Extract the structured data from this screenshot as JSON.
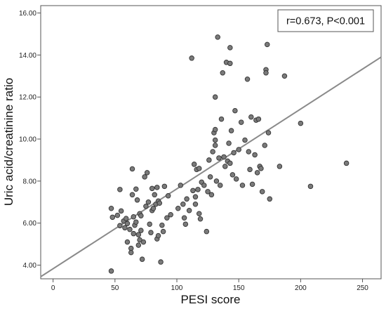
{
  "chart_data": {
    "type": "scatter",
    "title": "",
    "xlabel": "PESI score",
    "ylabel": "Uric acid/creatinine ratio",
    "xlim": [
      -10,
      265
    ],
    "ylim": [
      3.35,
      16.35
    ],
    "x_ticks": [
      0,
      50,
      100,
      150,
      200,
      250
    ],
    "x_tick_labels": [
      "0",
      "50",
      "100",
      "150",
      "200",
      "250"
    ],
    "y_ticks": [
      4,
      6,
      8,
      10,
      12,
      14,
      16
    ],
    "y_tick_labels": [
      "4.00",
      "6.00",
      "8.00",
      "10.00",
      "12.00",
      "14.00",
      "16.00"
    ],
    "grid": false,
    "annotation": "r=0.673, P<0.001",
    "fit_line": {
      "x": [
        -10,
        265
      ],
      "y": [
        3.45,
        13.9
      ]
    },
    "point_color": "#7a7a7a",
    "point_stroke": "#333333",
    "line_color": "#8a8a8a",
    "points": [
      {
        "x": 47,
        "y": 6.7
      },
      {
        "x": 48,
        "y": 6.28
      },
      {
        "x": 47,
        "y": 3.72
      },
      {
        "x": 52,
        "y": 6.37
      },
      {
        "x": 54,
        "y": 7.6
      },
      {
        "x": 55,
        "y": 6.58
      },
      {
        "x": 54,
        "y": 5.88
      },
      {
        "x": 57,
        "y": 6.1
      },
      {
        "x": 58,
        "y": 5.78
      },
      {
        "x": 60,
        "y": 5.98
      },
      {
        "x": 59,
        "y": 6.22
      },
      {
        "x": 60,
        "y": 5.1
      },
      {
        "x": 62,
        "y": 5.7
      },
      {
        "x": 63,
        "y": 4.8
      },
      {
        "x": 63,
        "y": 4.6
      },
      {
        "x": 64,
        "y": 7.35
      },
      {
        "x": 64,
        "y": 8.58
      },
      {
        "x": 65,
        "y": 6.3
      },
      {
        "x": 65,
        "y": 5.5
      },
      {
        "x": 66,
        "y": 5.9
      },
      {
        "x": 67,
        "y": 7.62
      },
      {
        "x": 67,
        "y": 6.05
      },
      {
        "x": 68,
        "y": 7.1
      },
      {
        "x": 69,
        "y": 4.95
      },
      {
        "x": 69,
        "y": 5.45
      },
      {
        "x": 70,
        "y": 6.45
      },
      {
        "x": 70,
        "y": 5.2
      },
      {
        "x": 71,
        "y": 6.35
      },
      {
        "x": 71,
        "y": 5.65
      },
      {
        "x": 72,
        "y": 4.28
      },
      {
        "x": 73,
        "y": 5.1
      },
      {
        "x": 74,
        "y": 8.2
      },
      {
        "x": 75,
        "y": 6.8
      },
      {
        "x": 76,
        "y": 8.4
      },
      {
        "x": 77,
        "y": 7.0
      },
      {
        "x": 78,
        "y": 5.95
      },
      {
        "x": 79,
        "y": 5.55
      },
      {
        "x": 80,
        "y": 7.65
      },
      {
        "x": 80,
        "y": 6.6
      },
      {
        "x": 81,
        "y": 6.7
      },
      {
        "x": 82,
        "y": 7.35
      },
      {
        "x": 83,
        "y": 6.9
      },
      {
        "x": 84,
        "y": 7.7
      },
      {
        "x": 84,
        "y": 5.25
      },
      {
        "x": 85,
        "y": 5.4
      },
      {
        "x": 85,
        "y": 7.05
      },
      {
        "x": 86,
        "y": 6.95
      },
      {
        "x": 87,
        "y": 4.15
      },
      {
        "x": 88,
        "y": 5.9
      },
      {
        "x": 89,
        "y": 5.6
      },
      {
        "x": 90,
        "y": 7.75
      },
      {
        "x": 92,
        "y": 6.25
      },
      {
        "x": 93,
        "y": 7.3
      },
      {
        "x": 95,
        "y": 6.4
      },
      {
        "x": 101,
        "y": 6.7
      },
      {
        "x": 103,
        "y": 7.8
      },
      {
        "x": 105,
        "y": 6.9
      },
      {
        "x": 106,
        "y": 6.25
      },
      {
        "x": 107,
        "y": 5.95
      },
      {
        "x": 108,
        "y": 7.15
      },
      {
        "x": 110,
        "y": 6.6
      },
      {
        "x": 112,
        "y": 13.85
      },
      {
        "x": 113,
        "y": 7.55
      },
      {
        "x": 114,
        "y": 8.8
      },
      {
        "x": 115,
        "y": 7.25
      },
      {
        "x": 115,
        "y": 6.9
      },
      {
        "x": 116,
        "y": 8.55
      },
      {
        "x": 117,
        "y": 7.6
      },
      {
        "x": 118,
        "y": 8.6
      },
      {
        "x": 118,
        "y": 6.45
      },
      {
        "x": 119,
        "y": 6.2
      },
      {
        "x": 120,
        "y": 7.95
      },
      {
        "x": 122,
        "y": 7.8
      },
      {
        "x": 124,
        "y": 5.6
      },
      {
        "x": 125,
        "y": 7.5
      },
      {
        "x": 126,
        "y": 9.0
      },
      {
        "x": 127,
        "y": 8.2
      },
      {
        "x": 128,
        "y": 7.35
      },
      {
        "x": 129,
        "y": 9.4
      },
      {
        "x": 130,
        "y": 10.3
      },
      {
        "x": 131,
        "y": 10.45
      },
      {
        "x": 131,
        "y": 9.95
      },
      {
        "x": 131,
        "y": 9.7
      },
      {
        "x": 131,
        "y": 12.0
      },
      {
        "x": 132,
        "y": 8.0
      },
      {
        "x": 133,
        "y": 14.85
      },
      {
        "x": 134,
        "y": 9.1
      },
      {
        "x": 135,
        "y": 7.8
      },
      {
        "x": 136,
        "y": 10.95
      },
      {
        "x": 137,
        "y": 13.15
      },
      {
        "x": 138,
        "y": 9.15
      },
      {
        "x": 139,
        "y": 8.7
      },
      {
        "x": 140,
        "y": 13.65
      },
      {
        "x": 141,
        "y": 8.95
      },
      {
        "x": 142,
        "y": 9.8
      },
      {
        "x": 143,
        "y": 14.35
      },
      {
        "x": 143,
        "y": 13.6
      },
      {
        "x": 143,
        "y": 8.85
      },
      {
        "x": 144,
        "y": 10.4
      },
      {
        "x": 145,
        "y": 8.3
      },
      {
        "x": 146,
        "y": 9.35
      },
      {
        "x": 147,
        "y": 11.35
      },
      {
        "x": 148,
        "y": 8.1
      },
      {
        "x": 150,
        "y": 9.5
      },
      {
        "x": 152,
        "y": 10.8
      },
      {
        "x": 153,
        "y": 7.8
      },
      {
        "x": 155,
        "y": 9.95
      },
      {
        "x": 157,
        "y": 12.85
      },
      {
        "x": 158,
        "y": 9.4
      },
      {
        "x": 159,
        "y": 8.55
      },
      {
        "x": 160,
        "y": 11.05
      },
      {
        "x": 161,
        "y": 7.85
      },
      {
        "x": 163,
        "y": 9.25
      },
      {
        "x": 164,
        "y": 10.9
      },
      {
        "x": 165,
        "y": 8.4
      },
      {
        "x": 166,
        "y": 10.95
      },
      {
        "x": 167,
        "y": 8.7
      },
      {
        "x": 168,
        "y": 8.6
      },
      {
        "x": 169,
        "y": 7.5
      },
      {
        "x": 171,
        "y": 9.7
      },
      {
        "x": 172,
        "y": 13.3
      },
      {
        "x": 172,
        "y": 13.15
      },
      {
        "x": 173,
        "y": 14.5
      },
      {
        "x": 174,
        "y": 10.3
      },
      {
        "x": 175,
        "y": 7.15
      },
      {
        "x": 183,
        "y": 8.7
      },
      {
        "x": 187,
        "y": 13.0
      },
      {
        "x": 200,
        "y": 10.75
      },
      {
        "x": 208,
        "y": 7.75
      },
      {
        "x": 237,
        "y": 8.85
      }
    ]
  }
}
